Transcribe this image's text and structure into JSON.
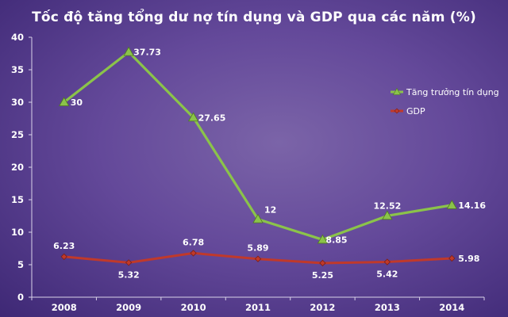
{
  "chart_data": {
    "type": "line",
    "title": "Tốc độ tăng tổng dư nợ tín dụng và GDP qua các năm (%)",
    "xlabel": "",
    "ylabel": "",
    "categories": [
      "2008",
      "2009",
      "2010",
      "2011",
      "2012",
      "2013",
      "2014"
    ],
    "ylim": [
      0,
      40
    ],
    "yticks": [
      0,
      5,
      10,
      15,
      20,
      25,
      30,
      35,
      40
    ],
    "grid": false,
    "legend": "right",
    "series": [
      {
        "name": "Tăng trưởng tín dụng",
        "values": [
          30,
          37.73,
          27.65,
          12,
          8.85,
          12.52,
          14.16
        ],
        "labels": [
          "30",
          "37.73",
          "27.65",
          "12",
          "8.85",
          "12.52",
          "14.16"
        ],
        "color": "#8bc34a",
        "marker": "triangle"
      },
      {
        "name": "GDP",
        "values": [
          6.23,
          5.32,
          6.78,
          5.89,
          5.25,
          5.42,
          5.98
        ],
        "labels": [
          "6.23",
          "5.32",
          "6.78",
          "5.89",
          "5.25",
          "5.42",
          "5.98"
        ],
        "color": "#c0392b",
        "marker": "diamond"
      }
    ]
  }
}
